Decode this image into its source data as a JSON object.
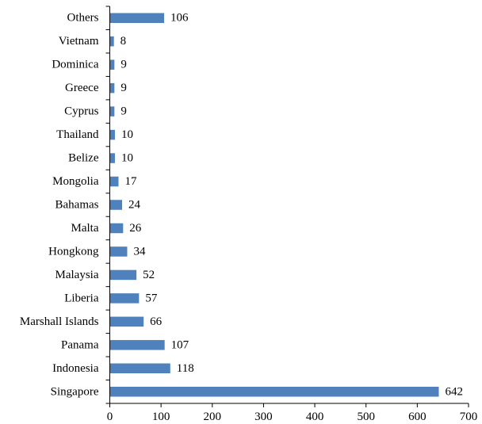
{
  "chart_data": {
    "type": "bar",
    "orientation": "horizontal",
    "title": "",
    "xlabel": "",
    "ylabel": "",
    "categories": [
      "Singapore",
      "Indonesia",
      "Panama",
      "Marshall Islands",
      "Liberia",
      "Malaysia",
      "Hongkong",
      "Malta",
      "Bahamas",
      "Mongolia",
      "Belize",
      "Thailand",
      "Cyprus",
      "Greece",
      "Dominica",
      "Vietnam",
      "Others"
    ],
    "values": [
      642,
      118,
      107,
      66,
      57,
      52,
      34,
      26,
      24,
      17,
      10,
      10,
      9,
      9,
      9,
      8,
      106
    ],
    "xlim": [
      0,
      700
    ],
    "xticks": [
      0,
      100,
      200,
      300,
      400,
      500,
      600,
      700
    ],
    "grid": false,
    "legend": "none",
    "bar_color": "#4f81bd"
  }
}
